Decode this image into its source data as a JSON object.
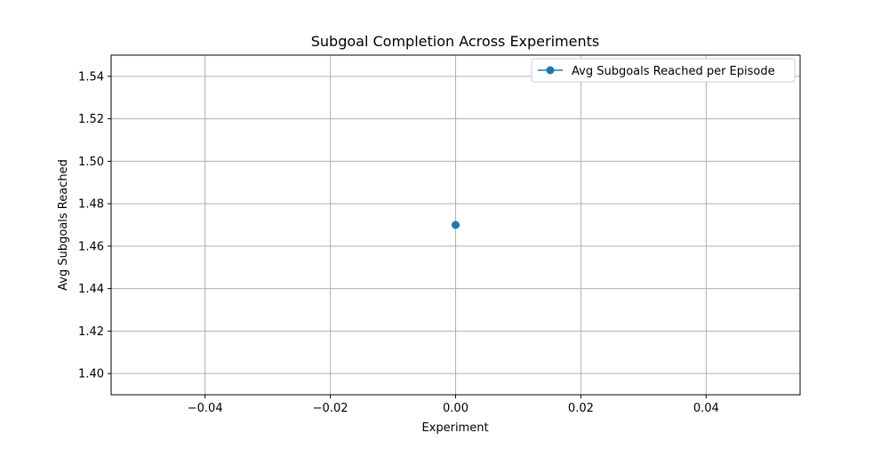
{
  "chart_data": {
    "type": "line",
    "title": "Subgoal Completion Across Experiments",
    "xlabel": "Experiment",
    "ylabel": "Avg Subgoals Reached",
    "xlim": [
      -0.055,
      0.055
    ],
    "ylim": [
      1.39,
      1.55
    ],
    "x_ticks": [
      -0.04,
      -0.02,
      0.0,
      0.02,
      0.04
    ],
    "x_tick_labels": [
      "−0.04",
      "−0.02",
      "0.00",
      "0.02",
      "0.04"
    ],
    "y_ticks": [
      1.4,
      1.42,
      1.44,
      1.46,
      1.48,
      1.5,
      1.52,
      1.54
    ],
    "y_tick_labels": [
      "1.40",
      "1.42",
      "1.44",
      "1.46",
      "1.48",
      "1.50",
      "1.52",
      "1.54"
    ],
    "grid": true,
    "legend_position": "top-right",
    "series": [
      {
        "name": "Avg Subgoals Reached per Episode",
        "color": "#1f77b4",
        "marker": "circle",
        "x": [
          0
        ],
        "y": [
          1.47
        ]
      }
    ]
  }
}
